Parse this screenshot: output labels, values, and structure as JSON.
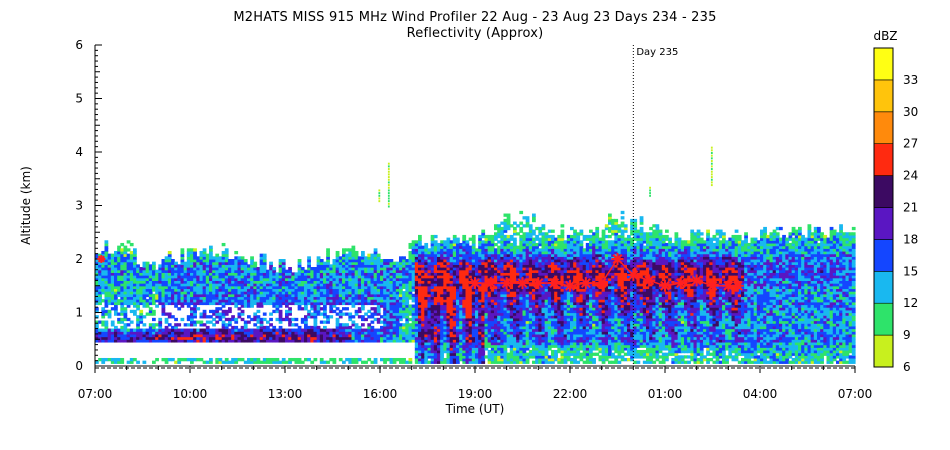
{
  "chart_data": {
    "type": "heatmap",
    "title": "M2HATS MISS 915 MHz Wind Profiler  22 Aug - 23 Aug 23 Days 234 - 235",
    "subtitle": "Reflectivity (Approx)",
    "xlabel": "Time (UT)",
    "ylabel": "Altitude (km)",
    "x_ticks": [
      "07:00",
      "10:00",
      "13:00",
      "16:00",
      "19:00",
      "22:00",
      "01:00",
      "04:00",
      "07:00"
    ],
    "x_range_hours": [
      0,
      24
    ],
    "y_ticks": [
      "0",
      "1",
      "2",
      "3",
      "4",
      "5",
      "6"
    ],
    "ylim": [
      0,
      6
    ],
    "annotation": {
      "text": "Day 235",
      "x_hours": 17
    },
    "colorbar": {
      "label": "dBZ",
      "tick_labels": [
        "6",
        "9",
        "12",
        "15",
        "18",
        "21",
        "24",
        "27",
        "30",
        "33"
      ],
      "colors": [
        "#c8f01e",
        "#2ee36a",
        "#19b8f0",
        "#1446ff",
        "#5a16c2",
        "#3c0a62",
        "#ff2a10",
        "#ff8a0c",
        "#ffc40c",
        "#ffff14"
      ]
    },
    "marker_series": {
      "x_hours": [
        12.0,
        12.5,
        13.0,
        13.5,
        14.0,
        14.5,
        15.0,
        15.5,
        16.0,
        16.5,
        17.0,
        17.5,
        18.0,
        18.5,
        19.0,
        19.5,
        20.0,
        20.3
      ],
      "altitude_km": [
        1.55,
        1.55,
        1.55,
        1.55,
        1.55,
        1.55,
        1.5,
        1.55,
        1.55,
        2.0,
        1.7,
        1.6,
        1.5,
        1.55,
        1.6,
        1.5,
        1.5,
        1.5
      ],
      "color": "#ff2020"
    },
    "extra_marker": {
      "x_hours": 0.2,
      "altitude_km": 2.0
    }
  }
}
